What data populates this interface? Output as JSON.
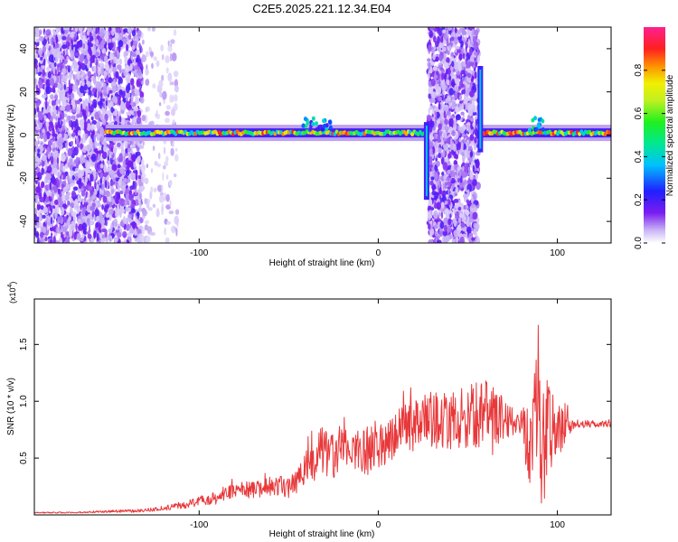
{
  "title": "C2E5.2025.221.12.34.E04",
  "colors": {
    "snr_line": "#e8383a",
    "axis": "#000000",
    "spectrogram_noise": "#6a1be0"
  },
  "chart_data": [
    {
      "type": "heatmap",
      "title": "C2E5.2025.221.12.34.E04",
      "xlabel": "Height of straight line (km)",
      "ylabel": "Frequency (Hz)",
      "xlim": [
        -192,
        130
      ],
      "ylim": [
        -50,
        50
      ],
      "x_ticks": [
        -100,
        0,
        100
      ],
      "y_ticks": [
        -40,
        -20,
        0,
        20,
        40
      ],
      "x_tick_labels": [
        "-100",
        "0",
        "100"
      ],
      "y_tick_labels": [
        "-40",
        "-20",
        "0",
        "20",
        "40"
      ],
      "colorbar": {
        "label": "Normalized spectral amplitude",
        "range": [
          0.0,
          1.0
        ],
        "ticks": [
          0.0,
          0.2,
          0.4,
          0.6,
          0.8
        ],
        "tick_labels": [
          "0.0",
          "0.2",
          "0.4",
          "0.6",
          "0.8"
        ],
        "colormap": "rainbow (violet → blue → cyan → green → yellow → red → magenta)"
      },
      "features": {
        "carrier_frequency_hz": 1,
        "noise_regions_km": [
          [
            -192,
            -132
          ],
          [
            28,
            56
          ]
        ],
        "sparse_noise_region_km": [
          -132,
          -112
        ],
        "carrier_spans_km": [
          [
            -152,
            28
          ],
          [
            58,
            130
          ]
        ],
        "vertical_streaks_km": [
          27,
          57
        ],
        "peak_amplitude": 0.95
      }
    },
    {
      "type": "line",
      "xlabel": "Height of straight line (km)",
      "ylabel": "SNR (10 * v/v)",
      "y_multiplier_label": "(x10",
      "y_multiplier_exponent": "4",
      "xlim": [
        -192,
        130
      ],
      "ylim": [
        0,
        1.9
      ],
      "x_ticks": [
        -100,
        0,
        100
      ],
      "y_ticks": [
        0.5,
        1.0,
        1.5
      ],
      "x_tick_labels": [
        "-100",
        "0",
        "100"
      ],
      "y_tick_labels": [
        "0.5",
        "1.0",
        "1.5"
      ],
      "series": [
        {
          "x": [
            -192,
            -170,
            -150,
            -130,
            -120,
            -110,
            -100,
            -90,
            -80,
            -70,
            -60,
            -50,
            -45,
            -40,
            -35,
            -30,
            -25,
            -20,
            -15,
            -10,
            -5,
            0,
            5,
            10,
            20,
            30,
            40,
            50,
            60,
            70,
            75,
            80,
            85,
            88,
            90,
            92,
            95,
            100,
            110,
            120,
            130
          ],
          "y": [
            0.02,
            0.02,
            0.03,
            0.04,
            0.06,
            0.08,
            0.12,
            0.16,
            0.22,
            0.22,
            0.25,
            0.25,
            0.3,
            0.42,
            0.46,
            0.6,
            0.48,
            0.62,
            0.56,
            0.58,
            0.56,
            0.62,
            0.65,
            0.72,
            0.78,
            0.84,
            0.82,
            0.86,
            0.9,
            0.84,
            0.82,
            0.8,
            0.8,
            0.9,
            0.85,
            0.8,
            0.82,
            0.72,
            0.8,
            0.8,
            0.8
          ],
          "noise_amplitude": [
            0.005,
            0.005,
            0.01,
            0.015,
            0.02,
            0.03,
            0.04,
            0.06,
            0.07,
            0.08,
            0.08,
            0.1,
            0.12,
            0.18,
            0.2,
            0.25,
            0.22,
            0.2,
            0.18,
            0.2,
            0.22,
            0.2,
            0.2,
            0.22,
            0.22,
            0.25,
            0.25,
            0.28,
            0.3,
            0.2,
            0.15,
            0.15,
            0.6,
            0.75,
            0.85,
            0.75,
            0.45,
            0.25,
            0.04,
            0.03,
            0.03
          ]
        }
      ]
    }
  ]
}
